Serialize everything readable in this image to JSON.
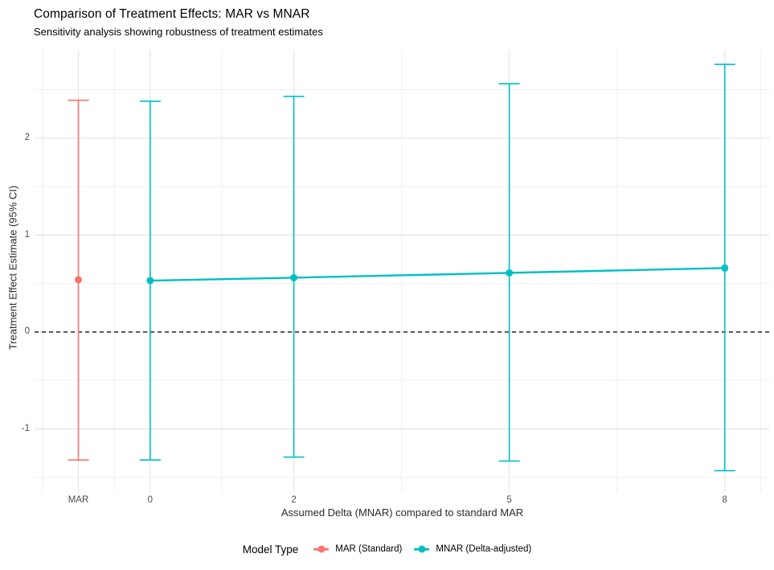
{
  "chart_data": {
    "type": "scatter",
    "title": "Comparison of Treatment Effects: MAR vs MNAR",
    "subtitle": "Sensitivity analysis showing robustness of treatment estimates",
    "xlabel": "Assumed Delta (MNAR) compared to standard MAR",
    "ylabel": "Treatment Effect Estimate (95% CI)",
    "legend_title": "Model Type",
    "legend_position": "bottom",
    "grid": true,
    "x_axis": {
      "tick_values": [
        -1,
        0,
        2,
        5,
        8
      ],
      "tick_labels": [
        "MAR",
        "0",
        "2",
        "5",
        "8"
      ],
      "minor_gridlines": [
        -1.5,
        -0.5,
        1,
        3.5,
        6.5,
        8.5
      ],
      "xlim": [
        -1.61,
        8.63
      ]
    },
    "y_axis": {
      "tick_values": [
        2,
        1,
        0,
        -1
      ],
      "tick_labels": [
        "2",
        "1",
        "0",
        "-1"
      ],
      "minor_gridlines": [
        2.5,
        1.5,
        0.5,
        -0.5,
        -1.5
      ],
      "ylim": [
        -1.65,
        2.91
      ]
    },
    "reference_line": {
      "y": 0,
      "style": "dashed",
      "color": "#000000"
    },
    "series": [
      {
        "name": "MAR (Standard)",
        "color": "#F8766D",
        "connected": false,
        "points": [
          {
            "x": -1,
            "x_label": "MAR",
            "estimate": 0.54,
            "ci_low": -1.32,
            "ci_high": 2.39
          }
        ]
      },
      {
        "name": "MNAR (Delta-adjusted)",
        "color": "#00BFC4",
        "connected": true,
        "points": [
          {
            "x": 0,
            "x_label": "0",
            "estimate": 0.53,
            "ci_low": -1.32,
            "ci_high": 2.38
          },
          {
            "x": 2,
            "x_label": "2",
            "estimate": 0.56,
            "ci_low": -1.29,
            "ci_high": 2.43
          },
          {
            "x": 5,
            "x_label": "5",
            "estimate": 0.61,
            "ci_low": -1.33,
            "ci_high": 2.56
          },
          {
            "x": 8,
            "x_label": "8",
            "estimate": 0.66,
            "ci_low": -1.43,
            "ci_high": 2.76
          }
        ]
      }
    ]
  }
}
